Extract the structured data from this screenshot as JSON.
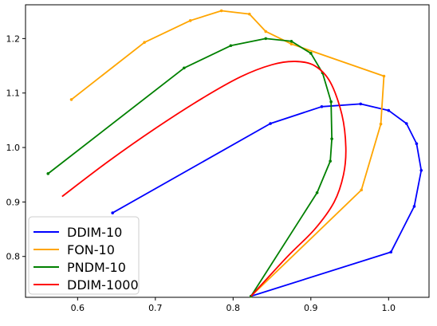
{
  "chart_data": {
    "type": "line",
    "title": "",
    "xlabel": "",
    "ylabel": "",
    "xlim": [
      0.533,
      1.052
    ],
    "ylim": [
      0.725,
      1.262
    ],
    "xticks": [
      0.6,
      0.7,
      0.8,
      0.9,
      1.0
    ],
    "xtick_labels": [
      "0.6",
      "0.7",
      "0.8",
      "0.9",
      "1.0"
    ],
    "yticks": [
      0.8,
      0.9,
      1.0,
      1.1,
      1.2
    ],
    "ytick_labels": [
      "0.8",
      "0.9",
      "1.0",
      "1.1",
      "1.2"
    ],
    "grid": false,
    "legend_position": "bottom-left",
    "series": [
      {
        "name": "DDIM-10",
        "color": "#0000ff",
        "markers": true,
        "x": [
          0.645,
          0.848,
          0.914,
          0.964,
          1.0,
          1.023,
          1.036,
          1.042,
          1.033,
          1.003,
          0.823
        ],
        "y": [
          0.88,
          1.044,
          1.075,
          1.08,
          1.068,
          1.044,
          1.007,
          0.958,
          0.892,
          0.808,
          0.727
        ]
      },
      {
        "name": "FON-10",
        "color": "#ffa500",
        "markers": true,
        "x": [
          0.592,
          0.686,
          0.745,
          0.785,
          0.821,
          0.842,
          0.875,
          0.994,
          0.99,
          0.965,
          0.823
        ],
        "y": [
          1.088,
          1.193,
          1.233,
          1.251,
          1.245,
          1.213,
          1.19,
          1.131,
          1.043,
          0.922,
          0.727
        ]
      },
      {
        "name": "PNDM-10",
        "color": "#008000",
        "markers": true,
        "x": [
          0.562,
          0.737,
          0.797,
          0.842,
          0.875,
          0.9,
          0.915,
          0.926,
          0.927,
          0.925,
          0.908,
          0.823
        ],
        "y": [
          0.952,
          1.146,
          1.187,
          1.2,
          1.195,
          1.173,
          1.137,
          1.084,
          1.016,
          0.975,
          0.917,
          0.727
        ]
      },
      {
        "name": "DDIM-1000",
        "color": "#ff0000",
        "markers": false,
        "x": [
          0.58,
          0.64,
          0.7,
          0.76,
          0.81,
          0.85,
          0.88,
          0.905,
          0.925,
          0.94,
          0.945,
          0.942,
          0.93,
          0.905,
          0.87,
          0.823
        ],
        "y": [
          0.91,
          0.975,
          1.035,
          1.09,
          1.13,
          1.152,
          1.158,
          1.15,
          1.12,
          1.06,
          1.0,
          0.95,
          0.9,
          0.85,
          0.8,
          0.727
        ]
      }
    ]
  }
}
